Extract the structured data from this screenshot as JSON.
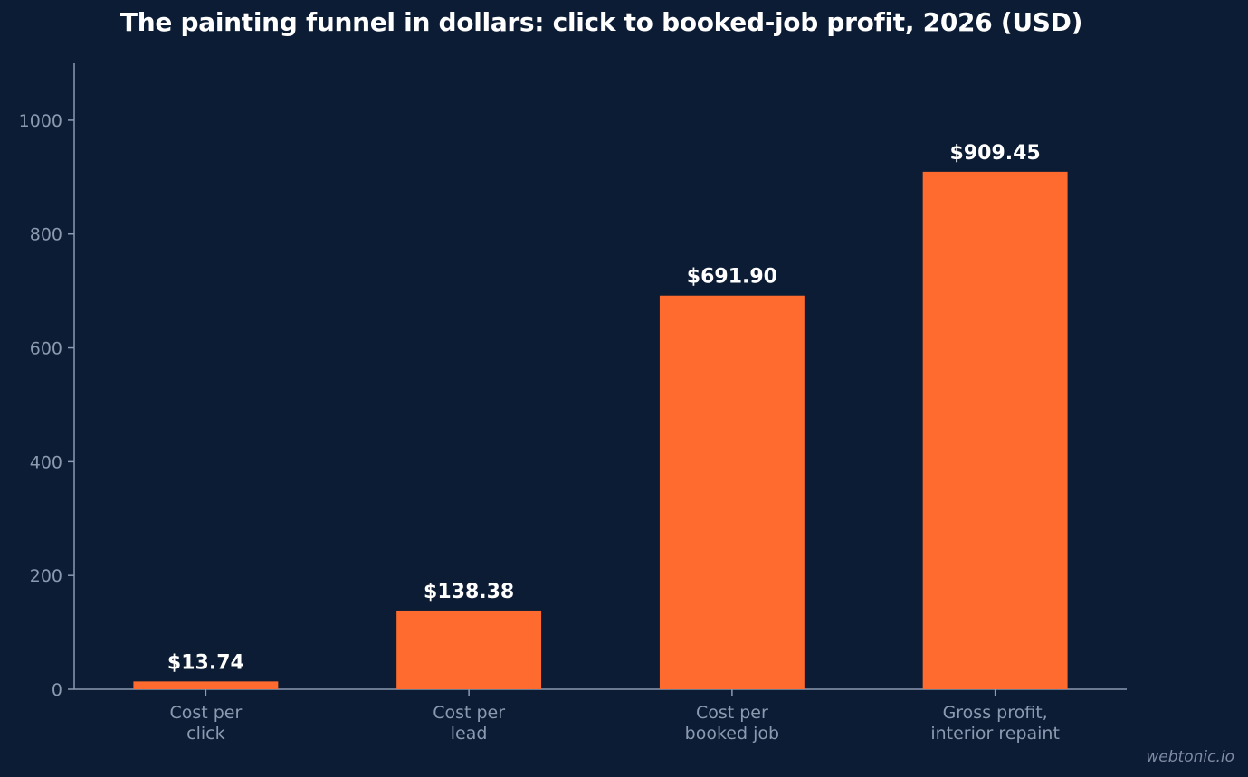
{
  "chart_data": {
    "type": "bar",
    "title": "The painting funnel in dollars: click to booked-job profit, 2026 (USD)",
    "categories": [
      [
        "Cost per",
        "click"
      ],
      [
        "Cost per",
        "lead"
      ],
      [
        "Cost per",
        "booked job"
      ],
      [
        "Gross profit,",
        "interior repaint"
      ]
    ],
    "values": [
      13.74,
      138.38,
      691.9,
      909.45
    ],
    "data_labels": [
      "$13.74",
      "$138.38",
      "$691.90",
      "$909.45"
    ],
    "ylim": [
      0,
      1100
    ],
    "yticks": [
      0,
      200,
      400,
      600,
      800,
      1000
    ],
    "xlabel": "",
    "ylabel": "",
    "grid": false,
    "bar_color": "#ff6b2e",
    "axis_color": "#8c9ab0"
  },
  "watermark": "webtonic.io"
}
